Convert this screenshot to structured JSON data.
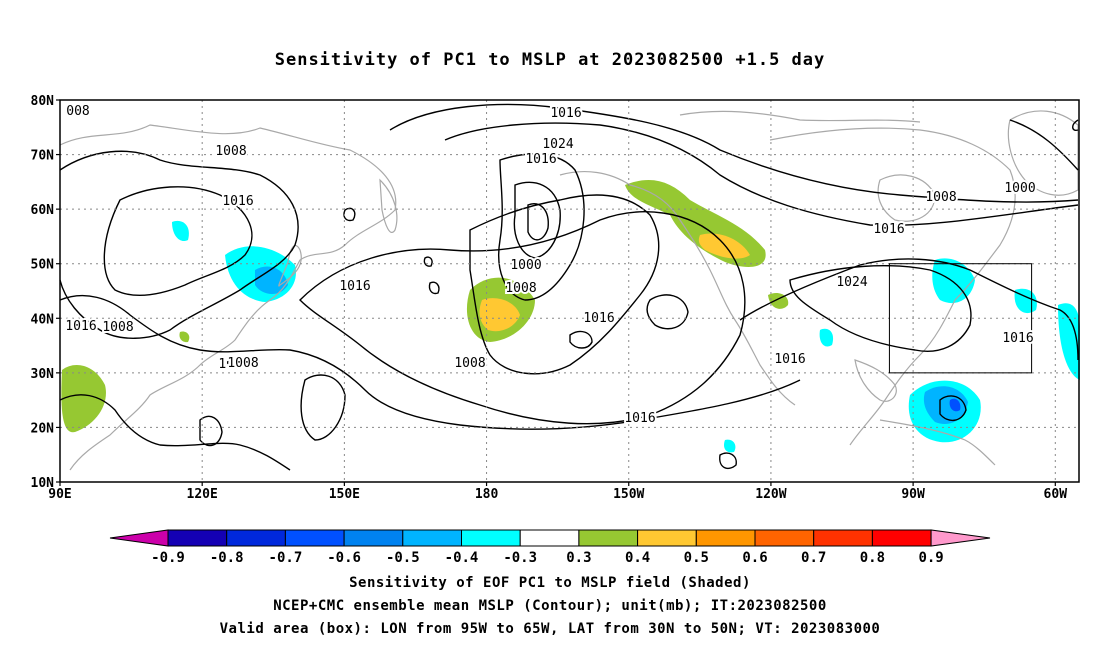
{
  "title": "Sensitivity of PC1 to MSLP at 2023082500 +1.5 day",
  "axes": {
    "lat_labels": [
      "80N",
      "70N",
      "60N",
      "50N",
      "40N",
      "30N",
      "20N",
      "10N"
    ],
    "lon_labels": [
      "90E",
      "120E",
      "150E",
      "180",
      "150W",
      "120W",
      "90W",
      "60W"
    ]
  },
  "contour_labels": [
    "008",
    "1008",
    "1016",
    "1016",
    "1016",
    "1008",
    "1000",
    "1016",
    "1008",
    "1016",
    "1008",
    "1008",
    "1016",
    "1024",
    "1016",
    "1024",
    "1016",
    "1016",
    "1000",
    "1008",
    "1016",
    "1016"
  ],
  "colorbar": {
    "labels": [
      "-0.9",
      "-0.8",
      "-0.7",
      "-0.6",
      "-0.5",
      "-0.4",
      "-0.3",
      "0.3",
      "0.4",
      "0.5",
      "0.6",
      "0.7",
      "0.8",
      "0.9"
    ],
    "colors": [
      "#cc00aa",
      "#1400b4",
      "#0028dc",
      "#0050ff",
      "#0082f0",
      "#00b4ff",
      "#00ffff",
      "#ffffff",
      "#96c832",
      "#ffc832",
      "#ff9600",
      "#ff6400",
      "#ff3200",
      "#ff0000",
      "#ff99cc"
    ]
  },
  "captions": [
    "Sensitivity of EOF PC1 to MSLP field (Shaded)",
    "NCEP+CMC ensemble mean MSLP (Contour); unit(mb); IT:2023082500",
    "Valid area (box): LON from 95W to 65W, LAT from 30N to 50N; VT: 2023083000"
  ],
  "map_extent": {
    "lon": [
      90,
      305
    ],
    "lat": [
      10,
      80
    ]
  },
  "valid_box": {
    "lon": [
      265,
      295
    ],
    "lat": [
      30,
      50
    ]
  }
}
